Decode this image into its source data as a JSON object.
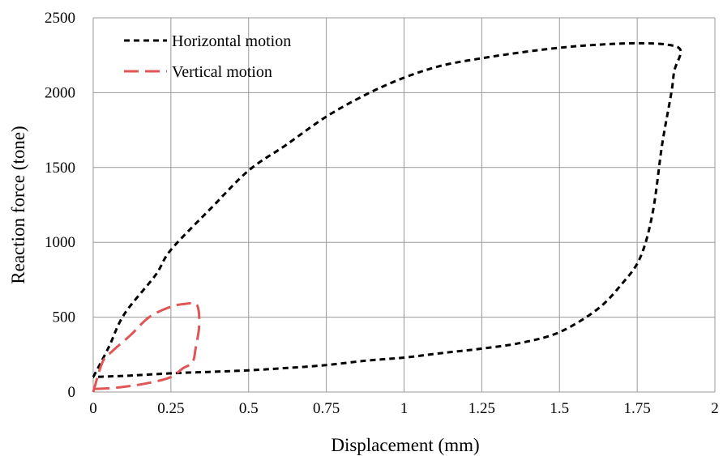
{
  "chart_data": {
    "type": "line",
    "title": "",
    "xlabel": "Displacement (mm)",
    "ylabel": "Reaction force (tone)",
    "xlim": [
      0,
      2
    ],
    "ylim": [
      0,
      2500
    ],
    "x_ticks": [
      "0",
      "0.25",
      "0.5",
      "0.75",
      "1",
      "1.25",
      "1.5",
      "1.75",
      "2"
    ],
    "y_ticks": [
      "0",
      "500",
      "1000",
      "1500",
      "2000",
      "2500"
    ],
    "x_tick_values": [
      0,
      0.25,
      0.5,
      0.75,
      1,
      1.25,
      1.5,
      1.75,
      2
    ],
    "y_tick_values": [
      0,
      500,
      1000,
      1500,
      2000,
      2500
    ],
    "grid": true,
    "legend_position": "top-left",
    "series": [
      {
        "name": "Horizontal motion",
        "color": "#000000",
        "dash": "short",
        "points": [
          [
            0.0,
            100
          ],
          [
            0.05,
            300
          ],
          [
            0.1,
            520
          ],
          [
            0.2,
            780
          ],
          [
            0.25,
            950
          ],
          [
            0.38,
            1230
          ],
          [
            0.5,
            1480
          ],
          [
            0.62,
            1650
          ],
          [
            0.75,
            1840
          ],
          [
            0.88,
            1990
          ],
          [
            1.0,
            2100
          ],
          [
            1.12,
            2180
          ],
          [
            1.25,
            2230
          ],
          [
            1.38,
            2270
          ],
          [
            1.5,
            2300
          ],
          [
            1.62,
            2320
          ],
          [
            1.75,
            2330
          ],
          [
            1.85,
            2320
          ],
          [
            1.89,
            2280
          ],
          [
            1.87,
            2150
          ],
          [
            1.86,
            2000
          ],
          [
            1.83,
            1650
          ],
          [
            1.8,
            1200
          ],
          [
            1.76,
            900
          ],
          [
            1.7,
            720
          ],
          [
            1.62,
            550
          ],
          [
            1.5,
            400
          ],
          [
            1.38,
            330
          ],
          [
            1.25,
            290
          ],
          [
            1.12,
            260
          ],
          [
            1.0,
            230
          ],
          [
            0.88,
            210
          ],
          [
            0.75,
            180
          ],
          [
            0.62,
            160
          ],
          [
            0.5,
            145
          ],
          [
            0.38,
            135
          ],
          [
            0.25,
            125
          ],
          [
            0.12,
            110
          ],
          [
            0.0,
            100
          ]
        ]
      },
      {
        "name": "Vertical motion",
        "color": "#e05555",
        "dash": "long",
        "points": [
          [
            0.0,
            0
          ],
          [
            0.03,
            200
          ],
          [
            0.06,
            270
          ],
          [
            0.12,
            380
          ],
          [
            0.18,
            500
          ],
          [
            0.25,
            570
          ],
          [
            0.3,
            590
          ],
          [
            0.33,
            590
          ],
          [
            0.34,
            530
          ],
          [
            0.34,
            420
          ],
          [
            0.33,
            300
          ],
          [
            0.32,
            200
          ],
          [
            0.29,
            160
          ],
          [
            0.25,
            100
          ],
          [
            0.2,
            70
          ],
          [
            0.15,
            50
          ],
          [
            0.1,
            35
          ],
          [
            0.05,
            25
          ],
          [
            0.0,
            20
          ]
        ]
      }
    ]
  }
}
